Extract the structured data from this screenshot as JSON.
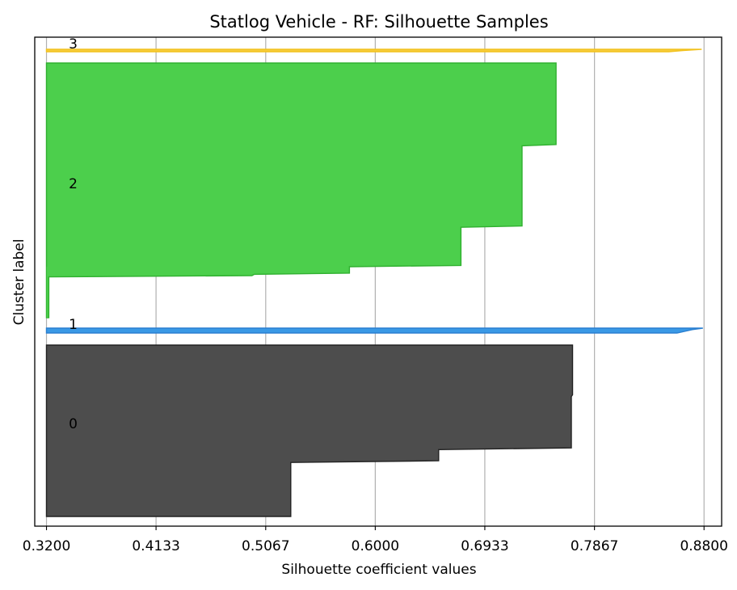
{
  "chart_data": {
    "type": "area",
    "title": "Statlog Vehicle - RF: Silhouette Samples",
    "xlabel": "Silhouette coefficient values",
    "ylabel": "Cluster label",
    "xlim": [
      0.31,
      0.895
    ],
    "x_ticks": [
      "0.3200",
      "0.4133",
      "0.5067",
      "0.6000",
      "0.6933",
      "0.7867",
      "0.8800"
    ],
    "x_tick_values": [
      0.32,
      0.4133,
      0.5067,
      0.6,
      0.6933,
      0.7867,
      0.88
    ],
    "y_ticks": [
      "0",
      "1",
      "2",
      "3"
    ],
    "grid": "x",
    "clusters": [
      {
        "label": "0",
        "color": "#4d4d4d",
        "edge": "#222222",
        "profile": [
          {
            "frac": 0.0,
            "value": 0.768
          },
          {
            "frac": 0.29,
            "value": 0.768
          },
          {
            "frac": 0.3,
            "value": 0.767
          },
          {
            "frac": 0.6,
            "value": 0.767
          },
          {
            "frac": 0.61,
            "value": 0.654
          },
          {
            "frac": 0.675,
            "value": 0.654
          },
          {
            "frac": 0.685,
            "value": 0.528
          },
          {
            "frac": 1.0,
            "value": 0.528
          }
        ]
      },
      {
        "label": "1",
        "color": "#3a99e6",
        "edge": "#2a7fd0",
        "profile": [
          {
            "frac": 0.0,
            "value": 0.879
          },
          {
            "frac": 0.3,
            "value": 0.87
          },
          {
            "frac": 1.0,
            "value": 0.857
          }
        ]
      },
      {
        "label": "2",
        "color": "#4ccf4c",
        "edge": "#2fb02f",
        "profile": [
          {
            "frac": 0.0,
            "value": 0.754
          },
          {
            "frac": 0.32,
            "value": 0.754
          },
          {
            "frac": 0.325,
            "value": 0.725
          },
          {
            "frac": 0.64,
            "value": 0.725
          },
          {
            "frac": 0.645,
            "value": 0.673
          },
          {
            "frac": 0.795,
            "value": 0.673
          },
          {
            "frac": 0.8,
            "value": 0.578
          },
          {
            "frac": 0.825,
            "value": 0.578
          },
          {
            "frac": 0.83,
            "value": 0.497
          },
          {
            "frac": 0.835,
            "value": 0.495
          },
          {
            "frac": 0.84,
            "value": 0.322
          },
          {
            "frac": 1.0,
            "value": 0.322
          }
        ]
      },
      {
        "label": "3",
        "color": "#f7cd3c",
        "edge": "#f2c21f",
        "profile": [
          {
            "frac": 0.0,
            "value": 0.878
          },
          {
            "frac": 0.5,
            "value": 0.862
          },
          {
            "frac": 1.0,
            "value": 0.85
          }
        ]
      }
    ]
  }
}
